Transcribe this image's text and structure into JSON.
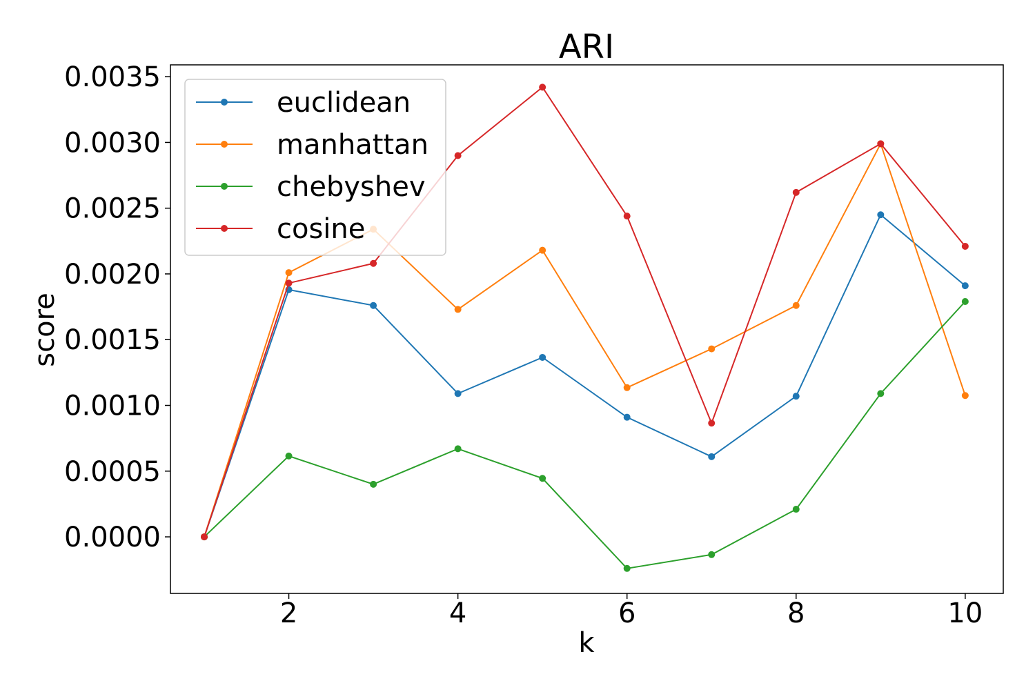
{
  "chart_data": {
    "type": "line",
    "title": "ARI",
    "xlabel": "k",
    "ylabel": "score",
    "x": [
      1,
      2,
      3,
      4,
      5,
      6,
      7,
      8,
      9,
      10
    ],
    "xlim": [
      0.6,
      10.45
    ],
    "ylim": [
      -0.00043,
      0.00359
    ],
    "xticks": [
      2,
      4,
      6,
      8,
      10
    ],
    "xtick_labels": [
      "2",
      "4",
      "6",
      "8",
      "10"
    ],
    "yticks": [
      0,
      0.0005,
      0.001,
      0.0015,
      0.002,
      0.0025,
      0.003,
      0.0035
    ],
    "ytick_labels": [
      "0.0000",
      "0.0005",
      "0.0010",
      "0.0015",
      "0.0020",
      "0.0025",
      "0.0030",
      "0.0035"
    ],
    "grid": false,
    "legend_position": "top-left",
    "series": [
      {
        "name": "euclidean",
        "color": "#1f77b4",
        "values": [
          0,
          0.00188,
          0.00176,
          0.00109,
          0.001365,
          0.00091,
          0.00061,
          0.00107,
          0.00245,
          0.00191
        ]
      },
      {
        "name": "manhattan",
        "color": "#ff7f0e",
        "values": [
          0,
          0.00201,
          0.00234,
          0.00173,
          0.00218,
          0.001135,
          0.00143,
          0.00176,
          0.00299,
          0.001075
        ]
      },
      {
        "name": "chebyshev",
        "color": "#2ca02c",
        "values": [
          0,
          0.000615,
          0.0004,
          0.00067,
          0.000445,
          -0.00024,
          -0.000135,
          0.00021,
          0.00109,
          0.00179
        ]
      },
      {
        "name": "cosine",
        "color": "#d62728",
        "values": [
          0,
          0.00193,
          0.00208,
          0.0029,
          0.00342,
          0.00244,
          0.000865,
          0.00262,
          0.00299,
          0.00221
        ]
      }
    ]
  }
}
